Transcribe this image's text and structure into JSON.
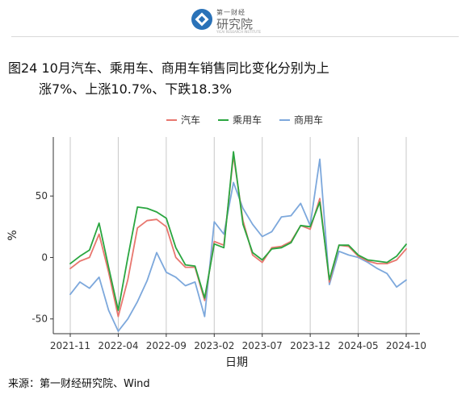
{
  "header": {
    "logo_top": "第一财经",
    "logo_main": "研究院",
    "logo_sub": "YICAI RESEARCH INSTITUTE"
  },
  "figure": {
    "title_line1": "图24 10月汽车、乘用车、商用车销售同比变化分别为上",
    "title_line2": "涨7%、上涨10.7%、下跌18.3%"
  },
  "source": "来源：第一财经研究院、Wind",
  "colors": {
    "汽车": "#e8776f",
    "乘用车": "#2aa640",
    "商用车": "#7da8dc",
    "grid": "#c8c8c8"
  },
  "chart_data": {
    "type": "line",
    "xlabel": "日期",
    "ylabel": "%",
    "ylim": [
      -62,
      98
    ],
    "yticks": [
      50,
      0,
      -50
    ],
    "xticks": [
      "2021-11",
      "2022-04",
      "2022-09",
      "2023-02",
      "2023-07",
      "2023-12",
      "2024-05",
      "2024-10"
    ],
    "x": [
      "2021-11",
      "2021-12",
      "2022-01",
      "2022-02",
      "2022-03",
      "2022-04",
      "2022-05",
      "2022-06",
      "2022-07",
      "2022-08",
      "2022-09",
      "2022-10",
      "2022-11",
      "2022-12",
      "2023-01",
      "2023-02",
      "2023-03",
      "2023-04",
      "2023-05",
      "2023-06",
      "2023-07",
      "2023-08",
      "2023-09",
      "2023-10",
      "2023-11",
      "2023-12",
      "2024-01",
      "2024-02",
      "2024-03",
      "2024-04",
      "2024-05",
      "2024-06",
      "2024-07",
      "2024-08",
      "2024-09",
      "2024-10"
    ],
    "grid": "vertical",
    "legend_position": "top-center",
    "series": [
      {
        "name": "汽车",
        "values": [
          -9,
          -3,
          0,
          19,
          -12,
          -48,
          -18,
          24,
          30,
          31,
          25,
          0,
          -8,
          -8,
          -35,
          13,
          10,
          83,
          30,
          2,
          -4,
          8,
          9,
          13,
          26,
          23,
          48,
          -20,
          10,
          9,
          1,
          -3,
          -5,
          -5,
          -2,
          7
        ]
      },
      {
        "name": "乘用车",
        "values": [
          -5,
          1,
          6,
          28,
          -8,
          -43,
          0,
          41,
          40,
          37,
          32,
          8,
          -6,
          -7,
          -33,
          11,
          8,
          86,
          27,
          4,
          -2,
          7,
          8,
          12,
          26,
          25,
          45,
          -18,
          10,
          10,
          2,
          -2,
          -3,
          -4,
          1,
          10.7
        ]
      },
      {
        "name": "商用车",
        "values": [
          -30,
          -20,
          -25,
          -16,
          -43,
          -60,
          -50,
          -36,
          -19,
          4,
          -12,
          -16,
          -23,
          -20,
          -48,
          29,
          19,
          61,
          40,
          27,
          17,
          21,
          33,
          34,
          44,
          26,
          80,
          -22,
          5,
          2,
          0,
          -4,
          -9,
          -13,
          -24,
          -18.3
        ]
      }
    ]
  }
}
